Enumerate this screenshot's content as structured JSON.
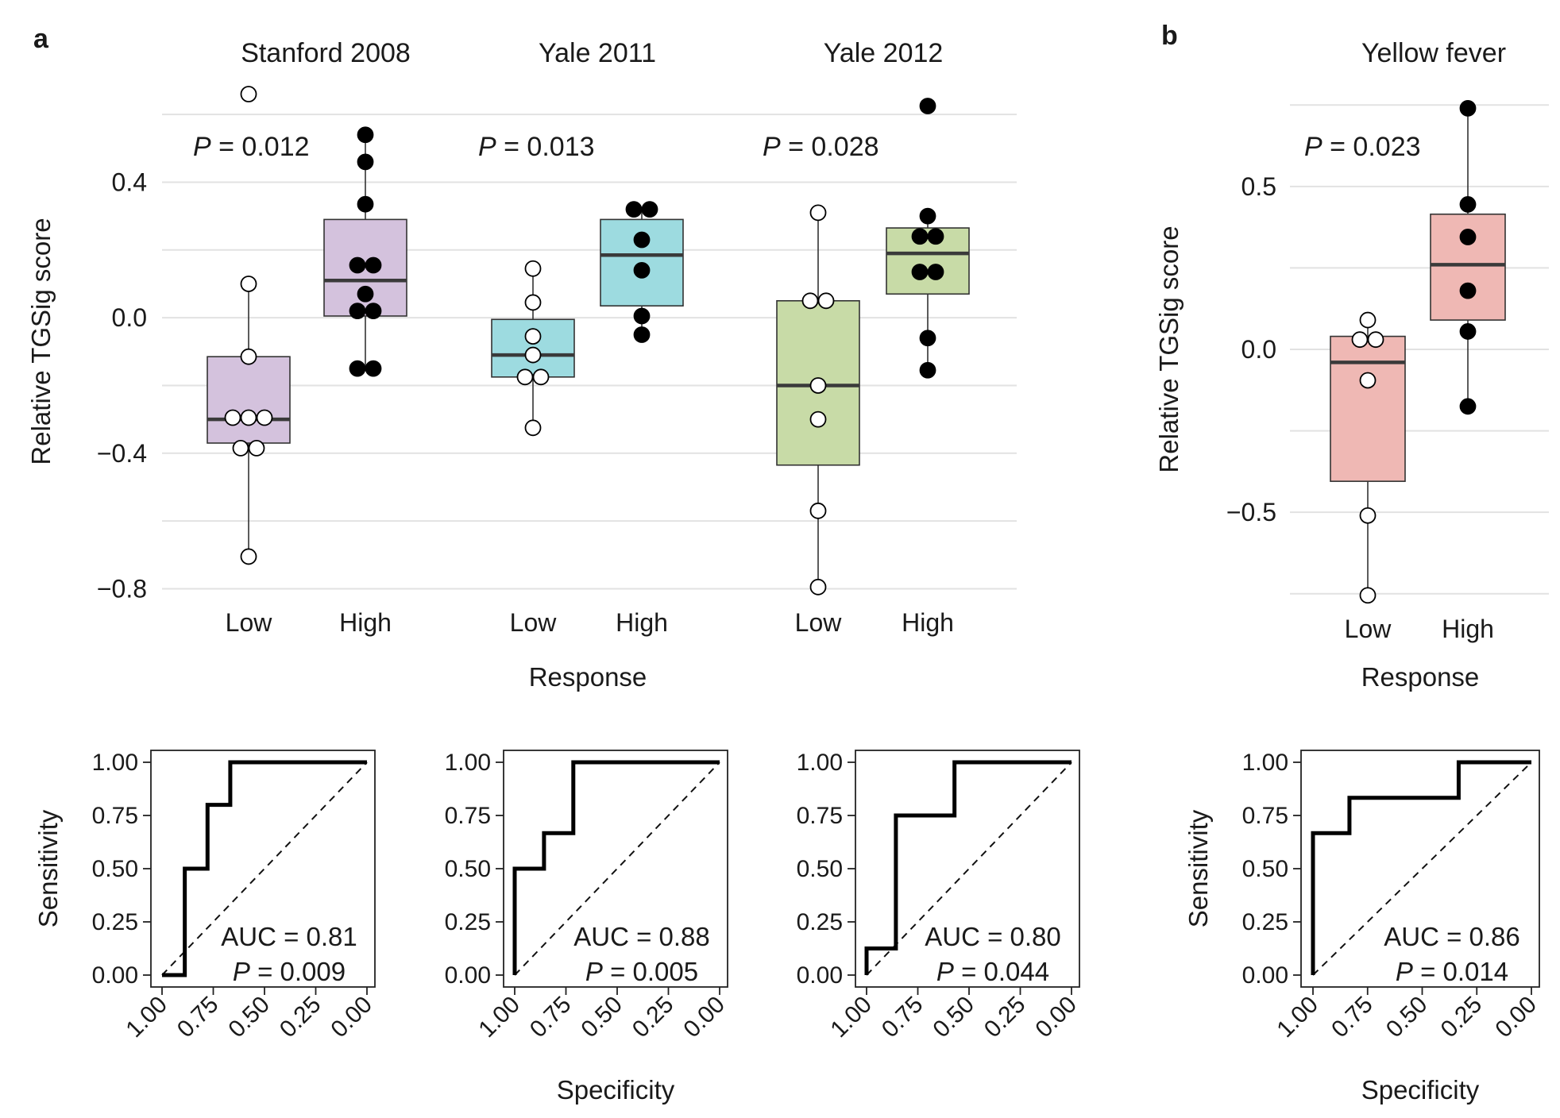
{
  "panel_labels": [
    "a",
    "b"
  ],
  "chart_data": [
    {
      "type": "box",
      "panel": "a",
      "ylabel": "Relative TGSig score",
      "xlabel": "Response",
      "ylim": [
        -0.82,
        0.68
      ],
      "yticks": [
        0.4,
        0.0,
        -0.4,
        -0.8
      ],
      "ytick_labels": [
        "0.4",
        "0.0",
        "−0.4",
        "−0.8"
      ],
      "gridlines": [
        0.6,
        0.4,
        0.2,
        0.0,
        -0.2,
        -0.4,
        -0.6,
        -0.8
      ],
      "groups": [
        {
          "title": "Stanford 2008",
          "p_prefix": "P",
          "p_value": " = 0.012",
          "color": "#d4c2dd",
          "boxes": [
            {
              "category": "Low",
              "q1": -0.37,
              "median": -0.3,
              "q3": -0.115,
              "whisker_low": -0.7,
              "whisker_high": 0.1,
              "points": [
                0.66,
                0.1,
                -0.115,
                -0.295,
                -0.295,
                -0.295,
                -0.385,
                -0.385,
                -0.705
              ],
              "filled": false
            },
            {
              "category": "High",
              "q1": 0.005,
              "median": 0.11,
              "q3": 0.29,
              "whisker_low": -0.15,
              "whisker_high": 0.54,
              "points": [
                0.54,
                0.46,
                0.335,
                0.155,
                0.155,
                0.07,
                0.02,
                0.02,
                -0.15,
                -0.15
              ],
              "filled": true
            }
          ]
        },
        {
          "title": "Yale 2011",
          "p_prefix": "P",
          "p_value": " = 0.013",
          "color": "#9ddbe0",
          "boxes": [
            {
              "category": "Low",
              "q1": -0.175,
              "median": -0.11,
              "q3": -0.005,
              "whisker_low": -0.325,
              "whisker_high": 0.145,
              "points": [
                0.145,
                0.045,
                -0.055,
                -0.11,
                -0.175,
                -0.175,
                -0.325
              ],
              "filled": false
            },
            {
              "category": "High",
              "q1": 0.035,
              "median": 0.185,
              "q3": 0.29,
              "whisker_low": -0.05,
              "whisker_high": 0.32,
              "points": [
                0.32,
                0.32,
                0.23,
                0.14,
                0.005,
                -0.05
              ],
              "filled": true
            }
          ]
        },
        {
          "title": "Yale 2012",
          "p_prefix": "P",
          "p_value": " = 0.028",
          "color": "#c8dba7",
          "boxes": [
            {
              "category": "Low",
              "q1": -0.435,
              "median": -0.2,
              "q3": 0.05,
              "whisker_low": -0.795,
              "whisker_high": 0.31,
              "points": [
                0.31,
                0.05,
                0.05,
                -0.2,
                -0.3,
                -0.57,
                -0.795
              ],
              "filled": false
            },
            {
              "category": "High",
              "q1": 0.07,
              "median": 0.19,
              "q3": 0.265,
              "whisker_low": -0.155,
              "whisker_high": 0.3,
              "points": [
                0.625,
                0.3,
                0.24,
                0.24,
                0.135,
                0.135,
                -0.06,
                -0.155
              ],
              "filled": true
            }
          ]
        }
      ]
    },
    {
      "type": "box",
      "panel": "b",
      "ylabel": "Relative TGSig score",
      "xlabel": "Response",
      "ylim": [
        -0.78,
        0.78
      ],
      "yticks": [
        0.5,
        0.0,
        -0.5
      ],
      "ytick_labels": [
        "0.5",
        "0.0",
        "−0.5"
      ],
      "gridlines": [
        0.75,
        0.5,
        0.25,
        0.0,
        -0.25,
        -0.5,
        -0.75
      ],
      "groups": [
        {
          "title": "Yellow fever",
          "p_prefix": "P",
          "p_value": " = 0.023",
          "color": "#efb8b4",
          "boxes": [
            {
              "category": "Low",
              "q1": -0.405,
              "median": -0.04,
              "q3": 0.04,
              "whisker_low": -0.755,
              "whisker_high": 0.09,
              "points": [
                0.09,
                0.03,
                0.03,
                -0.095,
                -0.51,
                -0.755
              ],
              "filled": false
            },
            {
              "category": "High",
              "q1": 0.09,
              "median": 0.26,
              "q3": 0.415,
              "whisker_low": -0.175,
              "whisker_high": 0.74,
              "points": [
                0.74,
                0.445,
                0.345,
                0.18,
                0.055,
                -0.175
              ],
              "filled": true
            }
          ]
        }
      ]
    },
    {
      "type": "line",
      "panel": "a",
      "subtype": "roc",
      "ylabel": "Sensitivity",
      "xlabel": "Specificity",
      "xlim": [
        1.0,
        0.0
      ],
      "ylim": [
        0.0,
        1.0
      ],
      "tick_labels": [
        "0.00",
        "0.25",
        "0.50",
        "0.75",
        "1.00"
      ],
      "ticks": [
        0.0,
        0.25,
        0.5,
        0.75,
        1.0
      ],
      "reference_line": "dashed diagonal",
      "curves": [
        {
          "auc_label": "AUC = 0.81",
          "p_prefix": "P",
          "p_value": " = 0.009",
          "x": [
            1.0,
            0.889,
            0.889,
            0.778,
            0.778,
            0.667,
            0.667,
            0.0
          ],
          "y": [
            0.0,
            0.0,
            0.5,
            0.5,
            0.8,
            0.8,
            1.0,
            1.0
          ]
        },
        {
          "auc_label": "AUC = 0.88",
          "p_prefix": "P",
          "p_value": " = 0.005",
          "x": [
            1.0,
            1.0,
            0.857,
            0.857,
            0.714,
            0.714,
            0.0
          ],
          "y": [
            0.0,
            0.5,
            0.5,
            0.667,
            0.667,
            1.0,
            1.0
          ]
        },
        {
          "auc_label": "AUC = 0.80",
          "p_prefix": "P",
          "p_value": " = 0.044",
          "x": [
            1.0,
            1.0,
            0.857,
            0.857,
            0.571,
            0.571,
            0.0
          ],
          "y": [
            0.0,
            0.125,
            0.125,
            0.75,
            0.75,
            1.0,
            1.0
          ]
        }
      ]
    },
    {
      "type": "line",
      "panel": "b",
      "subtype": "roc",
      "ylabel": "Sensitivity",
      "xlabel": "Specificity",
      "xlim": [
        1.0,
        0.0
      ],
      "ylim": [
        0.0,
        1.0
      ],
      "tick_labels": [
        "0.00",
        "0.25",
        "0.50",
        "0.75",
        "1.00"
      ],
      "ticks": [
        0.0,
        0.25,
        0.5,
        0.75,
        1.0
      ],
      "reference_line": "dashed diagonal",
      "curves": [
        {
          "auc_label": "AUC = 0.86",
          "p_prefix": "P",
          "p_value": " = 0.014",
          "x": [
            1.0,
            1.0,
            0.833,
            0.833,
            0.333,
            0.333,
            0.0
          ],
          "y": [
            0.0,
            0.667,
            0.667,
            0.833,
            0.833,
            1.0,
            1.0
          ]
        }
      ]
    }
  ]
}
